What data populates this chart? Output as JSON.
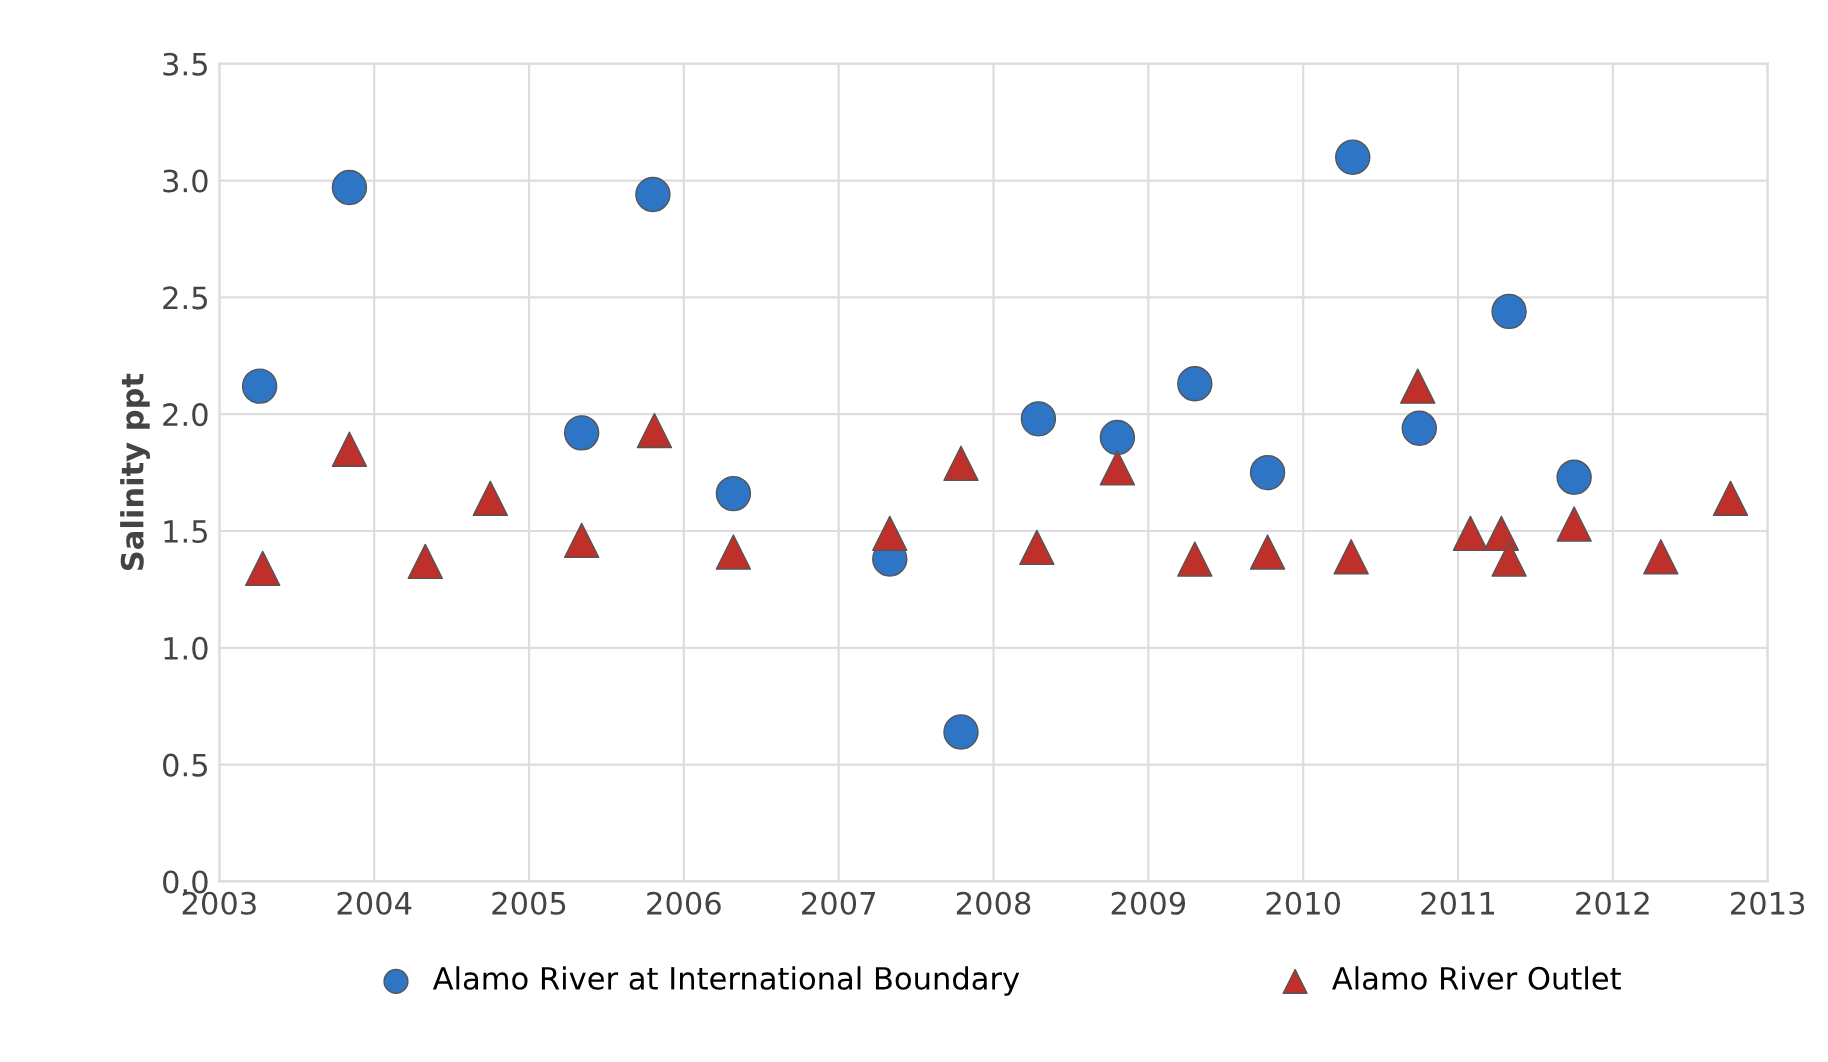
{
  "chart_data": {
    "type": "scatter",
    "ylabel": "Salinity ppt",
    "xlim": [
      2003,
      2013
    ],
    "xticks": [
      2003,
      2004,
      2005,
      2006,
      2007,
      2008,
      2009,
      2010,
      2011,
      2012,
      2013
    ],
    "ylim": [
      0,
      3.5
    ],
    "yticks": [
      {
        "value": 0,
        "label": "0.0"
      },
      {
        "value": 0.5,
        "label": "0.5"
      },
      {
        "value": 1,
        "label": "1.0"
      },
      {
        "value": 1.5,
        "label": "1.5"
      },
      {
        "value": 2,
        "label": "2.0"
      },
      {
        "value": 2.5,
        "label": "2.5"
      },
      {
        "value": 3,
        "label": "3.0"
      },
      {
        "value": 3.5,
        "label": "3.5"
      }
    ],
    "grid": true,
    "legend": "bottom",
    "series": [
      {
        "name": "Alamo River at International Boundary",
        "color": "#2e75c6",
        "marker": "circle",
        "x": [
          2003.26,
          2003.84,
          2005.34,
          2005.8,
          2006.32,
          2007.33,
          2007.79,
          2008.29,
          2008.8,
          2009.3,
          2009.77,
          2010.32,
          2010.75,
          2011.33,
          2011.75
        ],
        "values": [
          2.12,
          2.97,
          1.92,
          2.94,
          1.66,
          1.38,
          0.64,
          1.98,
          1.9,
          2.13,
          1.75,
          3.1,
          1.94,
          2.44,
          1.73
        ]
      },
      {
        "name": "Alamo River Outlet",
        "color": "#c0302a",
        "marker": "triangle",
        "x": [
          2003.28,
          2003.84,
          2004.33,
          2004.75,
          2005.34,
          2005.81,
          2006.32,
          2007.33,
          2007.79,
          2008.28,
          2008.8,
          2009.3,
          2009.77,
          2010.31,
          2010.74,
          2011.08,
          2011.28,
          2011.33,
          2011.75,
          2012.31,
          2012.76
        ],
        "values": [
          1.34,
          1.85,
          1.37,
          1.64,
          1.46,
          1.93,
          1.41,
          1.49,
          1.79,
          1.43,
          1.77,
          1.38,
          1.41,
          1.39,
          2.12,
          1.49,
          1.49,
          1.38,
          1.53,
          1.39,
          1.64
        ]
      }
    ]
  }
}
